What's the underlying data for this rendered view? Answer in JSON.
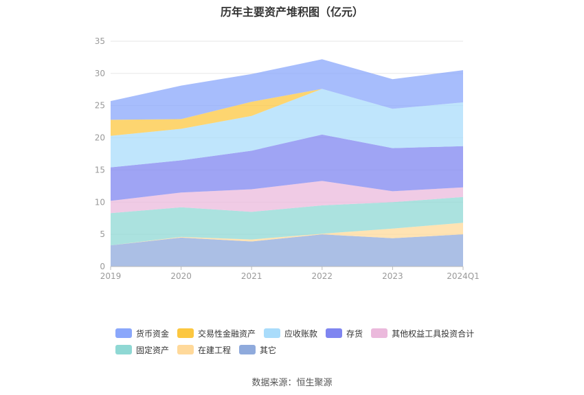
{
  "chart_data": {
    "type": "area",
    "stacked": true,
    "title": "历年主要资产堆积图（亿元）",
    "categories": [
      "2019",
      "2020",
      "2021",
      "2022",
      "2023",
      "2024Q1"
    ],
    "ylim": [
      0,
      35
    ],
    "yticks": [
      0,
      5,
      10,
      15,
      20,
      25,
      30,
      35
    ],
    "grid": true,
    "legend_position": "bottom",
    "series": [
      {
        "name": "其它",
        "color": "#8faadc",
        "values": [
          3.3,
          4.5,
          3.9,
          5.0,
          4.4,
          5.0
        ]
      },
      {
        "name": "在建工程",
        "color": "#ffd99a",
        "values": [
          0.0,
          0.1,
          0.3,
          0.1,
          1.5,
          1.8
        ]
      },
      {
        "name": "固定资产",
        "color": "#8fd8d4",
        "values": [
          5.0,
          4.6,
          4.3,
          4.4,
          4.1,
          4.0
        ]
      },
      {
        "name": "其他权益工具投资合计",
        "color": "#ebb9dc",
        "values": [
          1.9,
          2.3,
          3.5,
          3.8,
          1.7,
          1.5
        ]
      },
      {
        "name": "存货",
        "color": "#7f85f0",
        "values": [
          5.2,
          5.0,
          6.0,
          7.2,
          6.7,
          6.4
        ]
      },
      {
        "name": "应收账款",
        "color": "#a9dcfb",
        "values": [
          4.9,
          4.9,
          5.4,
          7.1,
          6.1,
          6.8
        ]
      },
      {
        "name": "交易性金融资产",
        "color": "#fcc740",
        "values": [
          2.5,
          1.5,
          2.2,
          0.0,
          0.0,
          0.0
        ]
      },
      {
        "name": "货币资金",
        "color": "#8aa7fb",
        "values": [
          2.9,
          5.2,
          4.3,
          4.6,
          4.6,
          5.0
        ]
      }
    ],
    "legend_order": [
      "货币资金",
      "交易性金融资产",
      "应收账款",
      "存货",
      "其他权益工具投资合计",
      "固定资产",
      "在建工程",
      "其它"
    ]
  },
  "source": "数据来源：恒生聚源"
}
